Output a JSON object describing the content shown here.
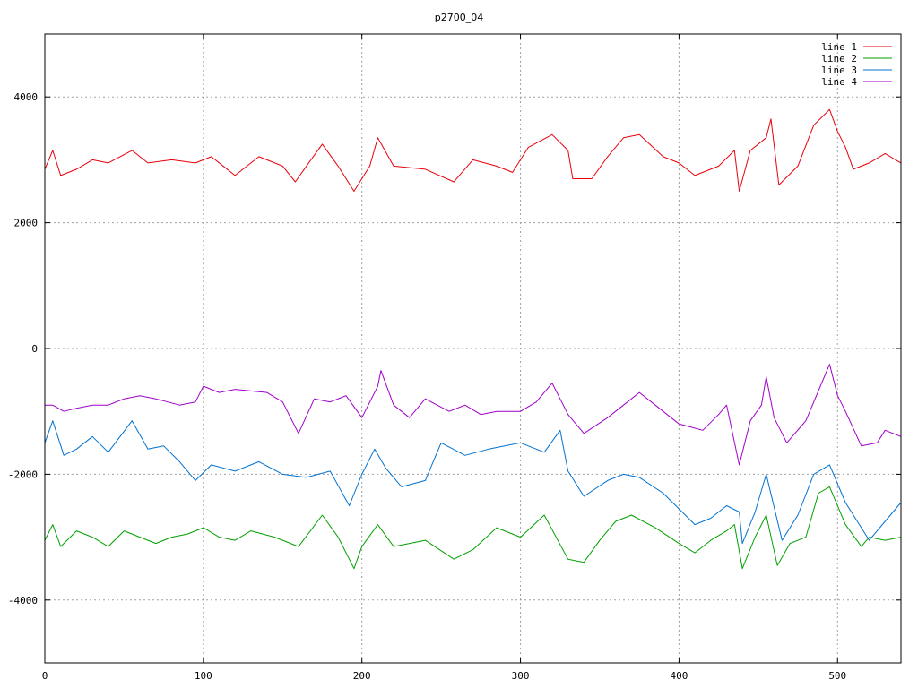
{
  "chart_data": {
    "type": "line",
    "title": "p2700_04",
    "xlabel": "",
    "ylabel": "",
    "xlim": [
      0,
      540
    ],
    "ylim": [
      -5000,
      5000
    ],
    "x_ticks": [
      0,
      100,
      200,
      300,
      400,
      500
    ],
    "y_ticks": [
      -4000,
      -2000,
      0,
      2000,
      4000
    ],
    "grid": true,
    "legend_position": "top-right",
    "series": [
      {
        "name": "line 1",
        "color": "#e8000b",
        "anchors": [
          [
            0,
            2850
          ],
          [
            5,
            3150
          ],
          [
            10,
            2750
          ],
          [
            20,
            2850
          ],
          [
            30,
            3000
          ],
          [
            40,
            2950
          ],
          [
            55,
            3150
          ],
          [
            65,
            2950
          ],
          [
            80,
            3000
          ],
          [
            95,
            2950
          ],
          [
            105,
            3050
          ],
          [
            120,
            2750
          ],
          [
            135,
            3050
          ],
          [
            150,
            2900
          ],
          [
            158,
            2650
          ],
          [
            165,
            2900
          ],
          [
            175,
            3250
          ],
          [
            185,
            2900
          ],
          [
            195,
            2500
          ],
          [
            205,
            2900
          ],
          [
            210,
            3350
          ],
          [
            220,
            2900
          ],
          [
            240,
            2850
          ],
          [
            258,
            2650
          ],
          [
            270,
            3000
          ],
          [
            285,
            2900
          ],
          [
            295,
            2800
          ],
          [
            305,
            3200
          ],
          [
            320,
            3400
          ],
          [
            330,
            3150
          ],
          [
            333,
            2700
          ],
          [
            345,
            2700
          ],
          [
            355,
            3050
          ],
          [
            365,
            3350
          ],
          [
            375,
            3400
          ],
          [
            390,
            3050
          ],
          [
            400,
            2950
          ],
          [
            410,
            2750
          ],
          [
            425,
            2900
          ],
          [
            435,
            3150
          ],
          [
            438,
            2500
          ],
          [
            445,
            3150
          ],
          [
            455,
            3350
          ],
          [
            458,
            3650
          ],
          [
            463,
            2600
          ],
          [
            475,
            2900
          ],
          [
            485,
            3550
          ],
          [
            495,
            3800
          ],
          [
            500,
            3450
          ],
          [
            505,
            3200
          ],
          [
            510,
            2850
          ],
          [
            520,
            2950
          ],
          [
            530,
            3100
          ],
          [
            540,
            2950
          ]
        ]
      },
      {
        "name": "line 2",
        "color": "#00a000",
        "anchors": [
          [
            0,
            -3050
          ],
          [
            5,
            -2800
          ],
          [
            10,
            -3150
          ],
          [
            20,
            -2900
          ],
          [
            30,
            -3000
          ],
          [
            40,
            -3150
          ],
          [
            50,
            -2900
          ],
          [
            60,
            -3000
          ],
          [
            70,
            -3100
          ],
          [
            80,
            -3000
          ],
          [
            90,
            -2950
          ],
          [
            100,
            -2850
          ],
          [
            110,
            -3000
          ],
          [
            120,
            -3050
          ],
          [
            130,
            -2900
          ],
          [
            145,
            -3000
          ],
          [
            160,
            -3150
          ],
          [
            175,
            -2650
          ],
          [
            185,
            -3000
          ],
          [
            195,
            -3500
          ],
          [
            200,
            -3150
          ],
          [
            210,
            -2800
          ],
          [
            220,
            -3150
          ],
          [
            240,
            -3050
          ],
          [
            258,
            -3350
          ],
          [
            270,
            -3200
          ],
          [
            285,
            -2850
          ],
          [
            300,
            -3000
          ],
          [
            315,
            -2650
          ],
          [
            330,
            -3350
          ],
          [
            340,
            -3400
          ],
          [
            350,
            -3050
          ],
          [
            360,
            -2750
          ],
          [
            370,
            -2650
          ],
          [
            385,
            -2850
          ],
          [
            400,
            -3100
          ],
          [
            410,
            -3250
          ],
          [
            420,
            -3050
          ],
          [
            430,
            -2900
          ],
          [
            435,
            -2800
          ],
          [
            440,
            -3500
          ],
          [
            448,
            -3000
          ],
          [
            455,
            -2650
          ],
          [
            462,
            -3450
          ],
          [
            470,
            -3100
          ],
          [
            480,
            -3000
          ],
          [
            488,
            -2300
          ],
          [
            495,
            -2200
          ],
          [
            505,
            -2800
          ],
          [
            515,
            -3150
          ],
          [
            520,
            -3000
          ],
          [
            530,
            -3050
          ],
          [
            540,
            -3000
          ]
        ]
      },
      {
        "name": "line 3",
        "color": "#0072d0",
        "anchors": [
          [
            0,
            -1500
          ],
          [
            5,
            -1150
          ],
          [
            12,
            -1700
          ],
          [
            20,
            -1600
          ],
          [
            30,
            -1400
          ],
          [
            40,
            -1650
          ],
          [
            55,
            -1150
          ],
          [
            65,
            -1600
          ],
          [
            75,
            -1550
          ],
          [
            85,
            -1800
          ],
          [
            95,
            -2100
          ],
          [
            105,
            -1850
          ],
          [
            120,
            -1950
          ],
          [
            135,
            -1800
          ],
          [
            150,
            -2000
          ],
          [
            165,
            -2050
          ],
          [
            180,
            -1950
          ],
          [
            192,
            -2500
          ],
          [
            200,
            -2000
          ],
          [
            208,
            -1600
          ],
          [
            215,
            -1900
          ],
          [
            225,
            -2200
          ],
          [
            240,
            -2100
          ],
          [
            250,
            -1500
          ],
          [
            265,
            -1700
          ],
          [
            280,
            -1600
          ],
          [
            300,
            -1500
          ],
          [
            315,
            -1650
          ],
          [
            325,
            -1300
          ],
          [
            330,
            -1950
          ],
          [
            340,
            -2350
          ],
          [
            355,
            -2100
          ],
          [
            365,
            -2000
          ],
          [
            375,
            -2050
          ],
          [
            390,
            -2300
          ],
          [
            400,
            -2550
          ],
          [
            410,
            -2800
          ],
          [
            420,
            -2700
          ],
          [
            430,
            -2500
          ],
          [
            438,
            -2600
          ],
          [
            440,
            -3100
          ],
          [
            448,
            -2600
          ],
          [
            455,
            -2000
          ],
          [
            465,
            -3050
          ],
          [
            475,
            -2650
          ],
          [
            485,
            -2000
          ],
          [
            495,
            -1850
          ],
          [
            505,
            -2450
          ],
          [
            515,
            -2850
          ],
          [
            520,
            -3050
          ],
          [
            530,
            -2750
          ],
          [
            540,
            -2450
          ]
        ]
      },
      {
        "name": "line 4",
        "color": "#a000c8",
        "anchors": [
          [
            0,
            -900
          ],
          [
            5,
            -900
          ],
          [
            12,
            -1000
          ],
          [
            20,
            -950
          ],
          [
            30,
            -900
          ],
          [
            40,
            -900
          ],
          [
            50,
            -800
          ],
          [
            60,
            -750
          ],
          [
            70,
            -800
          ],
          [
            85,
            -900
          ],
          [
            95,
            -850
          ],
          [
            100,
            -600
          ],
          [
            110,
            -700
          ],
          [
            120,
            -650
          ],
          [
            140,
            -700
          ],
          [
            150,
            -850
          ],
          [
            160,
            -1350
          ],
          [
            170,
            -800
          ],
          [
            180,
            -850
          ],
          [
            190,
            -750
          ],
          [
            200,
            -1100
          ],
          [
            210,
            -600
          ],
          [
            212,
            -350
          ],
          [
            220,
            -900
          ],
          [
            230,
            -1100
          ],
          [
            240,
            -800
          ],
          [
            255,
            -1000
          ],
          [
            265,
            -900
          ],
          [
            275,
            -1050
          ],
          [
            285,
            -1000
          ],
          [
            300,
            -1000
          ],
          [
            310,
            -850
          ],
          [
            320,
            -550
          ],
          [
            330,
            -1050
          ],
          [
            340,
            -1350
          ],
          [
            355,
            -1100
          ],
          [
            365,
            -900
          ],
          [
            375,
            -700
          ],
          [
            385,
            -900
          ],
          [
            400,
            -1200
          ],
          [
            415,
            -1300
          ],
          [
            425,
            -1050
          ],
          [
            430,
            -900
          ],
          [
            438,
            -1850
          ],
          [
            445,
            -1150
          ],
          [
            452,
            -900
          ],
          [
            455,
            -450
          ],
          [
            460,
            -1100
          ],
          [
            468,
            -1500
          ],
          [
            480,
            -1150
          ],
          [
            490,
            -550
          ],
          [
            495,
            -250
          ],
          [
            500,
            -750
          ],
          [
            505,
            -1000
          ],
          [
            515,
            -1550
          ],
          [
            525,
            -1500
          ],
          [
            530,
            -1300
          ],
          [
            540,
            -1400
          ]
        ]
      }
    ]
  }
}
